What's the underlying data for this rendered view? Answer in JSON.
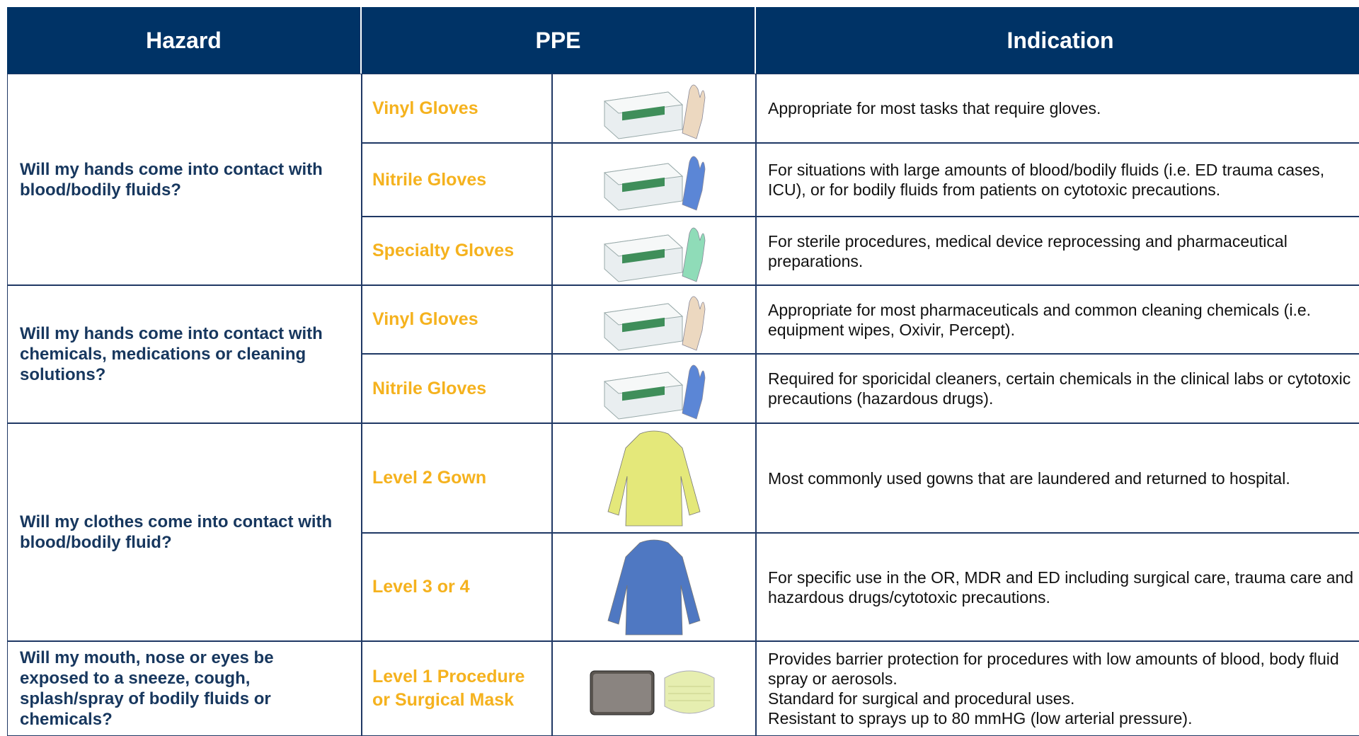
{
  "header": {
    "hazard": "Hazard",
    "ppe": "PPE",
    "indication": "Indication"
  },
  "groups": [
    {
      "hazard": "Will my hands come into contact with blood/bodily fluids?",
      "items": [
        {
          "ppe": "Vinyl Gloves",
          "indication": [
            "Appropriate for most tasks that require gloves."
          ]
        },
        {
          "ppe": "Nitrile Gloves",
          "indication": [
            "For situations with large amounts of blood/bodily fluids (i.e. ED trauma cases, ICU),  or for bodily fluids from patients on cytotoxic precautions."
          ]
        },
        {
          "ppe": "Specialty Gloves",
          "indication": [
            "For sterile procedures, medical device reprocessing and pharmaceutical preparations."
          ]
        }
      ]
    },
    {
      "hazard": "Will my hands come into contact with chemicals, medications or cleaning solutions?",
      "items": [
        {
          "ppe": "Vinyl Gloves",
          "indication": [
            "Appropriate for most pharmaceuticals and common cleaning chemicals (i.e. equipment wipes, Oxivir, Percept)."
          ]
        },
        {
          "ppe": "Nitrile Gloves",
          "indication": [
            "Required for sporicidal cleaners, certain chemicals in the clinical labs or cytotoxic precautions (hazardous drugs)."
          ]
        }
      ]
    },
    {
      "hazard": "Will my clothes come into contact with blood/bodily fluid?",
      "items": [
        {
          "ppe": "Level 2 Gown",
          "indication": [
            "Most commonly used gowns that are laundered and returned to hospital."
          ]
        },
        {
          "ppe": "Level 3 or 4",
          "indication": [
            "For specific use in the OR, MDR and ED including surgical care, trauma care and hazardous drugs/cytotoxic precautions."
          ]
        }
      ]
    },
    {
      "hazard": "Will my mouth, nose or eyes be exposed to a sneeze, cough, splash/spray of bodily fluids or chemicals?",
      "items": [
        {
          "ppe": "Level 1 Procedure or Surgical Mask",
          "indication": [
            "Provides barrier protection for procedures with low amounts of blood, body fluid spray or aerosols.",
            "Standard for surgical and procedural uses.",
            "Resistant to sprays up to 80 mmHG  (low arterial pressure)."
          ]
        }
      ]
    }
  ]
}
